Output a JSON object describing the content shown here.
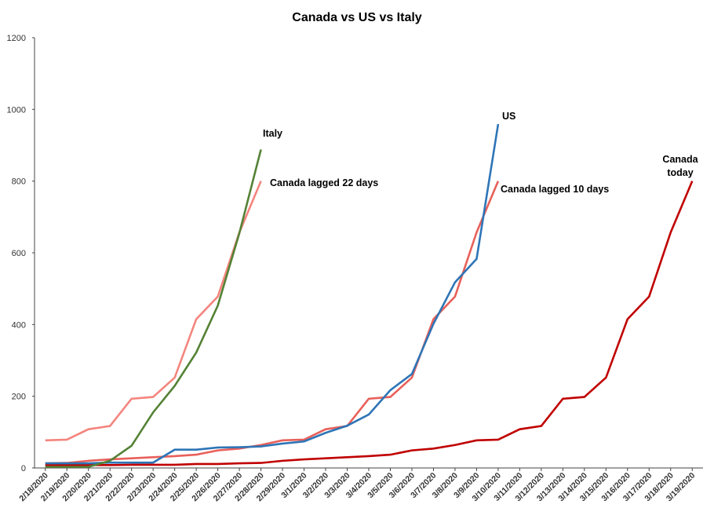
{
  "chart_data": {
    "type": "line",
    "title": "Canada vs US vs Italy",
    "categories": [
      "2/18/2020",
      "2/19/2020",
      "2/20/2020",
      "2/21/2020",
      "2/22/2020",
      "2/23/2020",
      "2/24/2020",
      "2/25/2020",
      "2/26/2020",
      "2/27/2020",
      "2/28/2020",
      "2/29/2020",
      "3/1/2020",
      "3/2/2020",
      "3/3/2020",
      "3/4/2020",
      "3/5/2020",
      "3/6/2020",
      "3/7/2020",
      "3/8/2020",
      "3/9/2020",
      "3/10/2020",
      "3/11/2020",
      "3/12/2020",
      "3/13/2020",
      "3/14/2020",
      "3/15/2020",
      "3/16/2020",
      "3/17/2020",
      "3/18/2020",
      "3/19/2020"
    ],
    "series": [
      {
        "name": "Canada today",
        "color": "#c00000",
        "values": [
          8,
          8,
          8,
          8,
          9,
          9,
          9,
          11,
          11,
          13,
          14,
          20,
          24,
          27,
          30,
          33,
          37,
          49,
          54,
          64,
          77,
          79,
          108,
          117,
          193,
          198,
          252,
          415,
          478,
          657,
          800
        ]
      },
      {
        "name": "Canada lagged 10 days",
        "color": "#e8605a",
        "values": [
          13,
          14,
          20,
          24,
          27,
          30,
          33,
          37,
          49,
          54,
          64,
          77,
          79,
          108,
          117,
          193,
          198,
          252,
          415,
          478,
          657,
          800,
          null,
          null,
          null,
          null,
          null,
          null,
          null,
          null,
          null
        ]
      },
      {
        "name": "US",
        "color": "#2e75b6",
        "values": [
          13,
          13,
          13,
          15,
          15,
          15,
          51,
          51,
          57,
          58,
          60,
          68,
          74,
          98,
          118,
          149,
          217,
          262,
          402,
          518,
          583,
          959,
          null,
          null,
          null,
          null,
          null,
          null,
          null,
          null,
          null
        ]
      },
      {
        "name": "Canada lagged 22 days",
        "color": "#f4857e",
        "values": [
          77,
          79,
          108,
          117,
          193,
          198,
          252,
          415,
          478,
          657,
          800,
          null,
          null,
          null,
          null,
          null,
          null,
          null,
          null,
          null,
          null,
          null,
          null,
          null,
          null,
          null,
          null,
          null,
          null,
          null,
          null
        ]
      },
      {
        "name": "Italy",
        "color": "#548235",
        "values": [
          3,
          3,
          3,
          20,
          62,
          155,
          229,
          322,
          453,
          655,
          888,
          null,
          null,
          null,
          null,
          null,
          null,
          null,
          null,
          null,
          null,
          null,
          null,
          null,
          null,
          null,
          null,
          null,
          null,
          null,
          null
        ]
      }
    ],
    "ylim": [
      0,
      1200
    ],
    "yticks": [
      0,
      200,
      400,
      600,
      800,
      1000,
      1200
    ],
    "grid": false
  }
}
